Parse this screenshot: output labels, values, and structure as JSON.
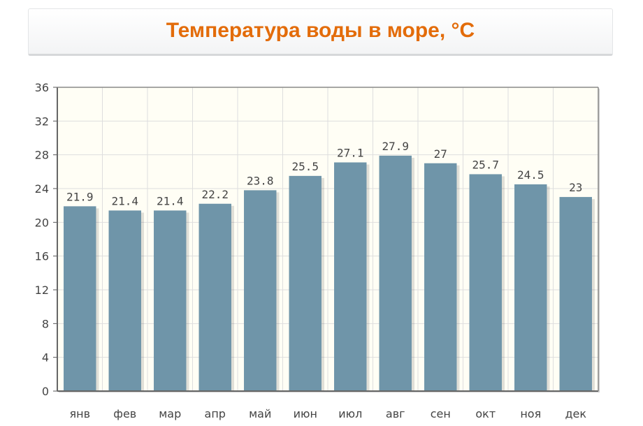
{
  "title": "Температура воды в море, °C",
  "colors": {
    "bar": "#6f95a9",
    "plot_background": "#fffef5",
    "title": "#e36c0a"
  },
  "chart_data": {
    "type": "bar",
    "categories": [
      "янв",
      "фев",
      "мар",
      "апр",
      "май",
      "июн",
      "июл",
      "авг",
      "сен",
      "окт",
      "ноя",
      "дек"
    ],
    "values": [
      21.9,
      21.4,
      21.4,
      22.2,
      23.8,
      25.5,
      27.1,
      27.9,
      27,
      25.7,
      24.5,
      23
    ],
    "data_labels": [
      "21.9",
      "21.4",
      "21.4",
      "22.2",
      "23.8",
      "25.5",
      "27.1",
      "27.9",
      "27",
      "25.7",
      "24.5",
      "23"
    ],
    "yticks": [
      "0",
      "4",
      "8",
      "12",
      "16",
      "20",
      "24",
      "28",
      "32",
      "36"
    ],
    "ylim": [
      0,
      36
    ],
    "grid": true,
    "legend": "none"
  }
}
